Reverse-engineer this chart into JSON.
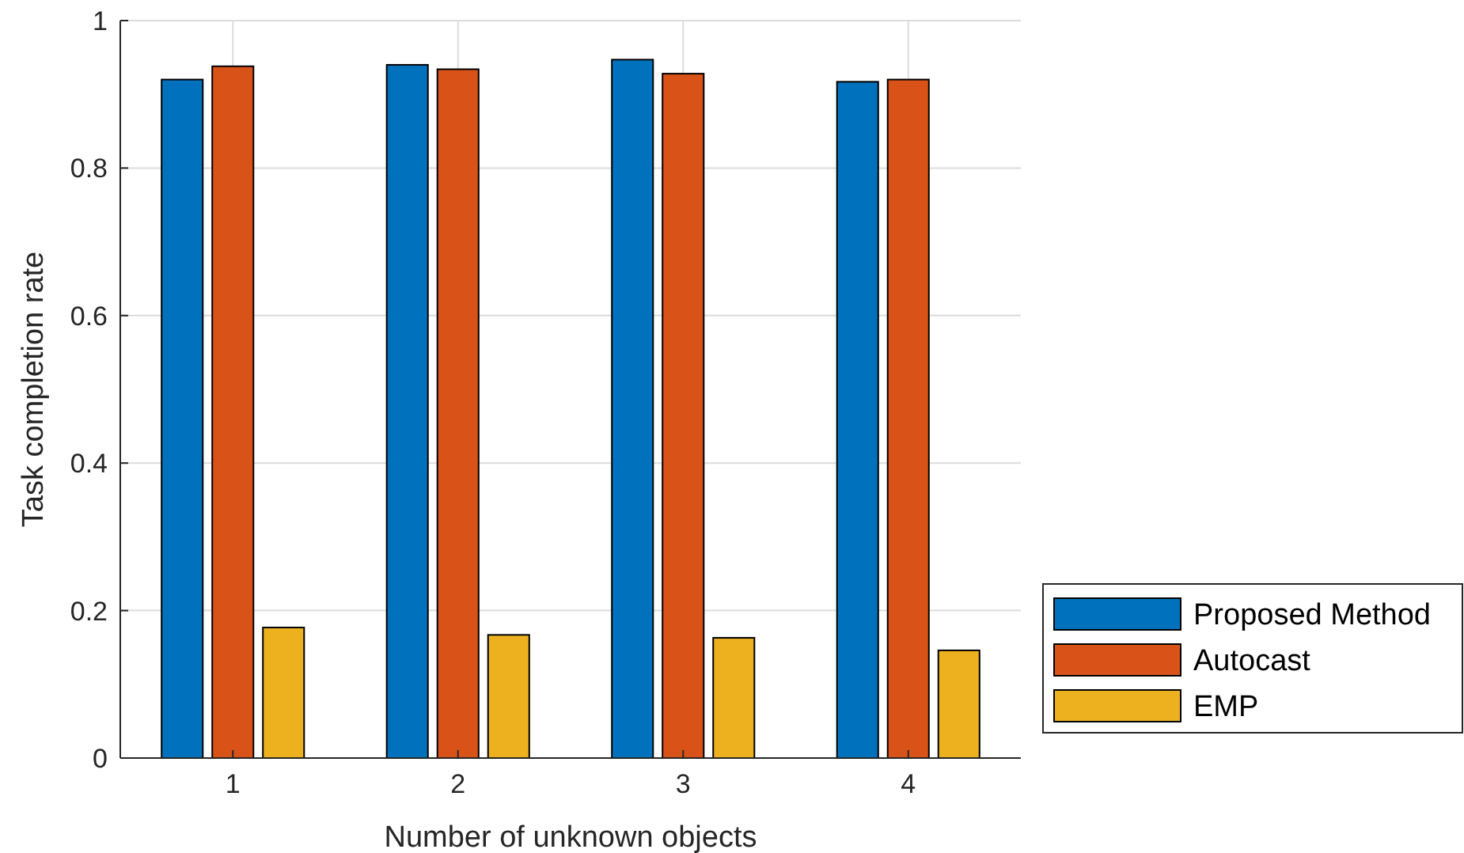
{
  "chart_data": {
    "type": "bar",
    "xlabel": "Number of unknown objects",
    "ylabel": "Task completion rate",
    "categories": [
      "1",
      "2",
      "3",
      "4"
    ],
    "series": [
      {
        "name": "Proposed Method",
        "color": "#0072bd",
        "values": [
          0.92,
          0.94,
          0.947,
          0.917
        ]
      },
      {
        "name": "Autocast",
        "color": "#d95319",
        "values": [
          0.938,
          0.934,
          0.928,
          0.92
        ]
      },
      {
        "name": "EMP",
        "color": "#edb120",
        "values": [
          0.177,
          0.167,
          0.163,
          0.146
        ]
      }
    ],
    "ylim": [
      0,
      1
    ],
    "yticks": [
      0,
      0.2,
      0.4,
      0.6,
      0.8,
      1
    ],
    "grid": true,
    "legend": "right"
  }
}
